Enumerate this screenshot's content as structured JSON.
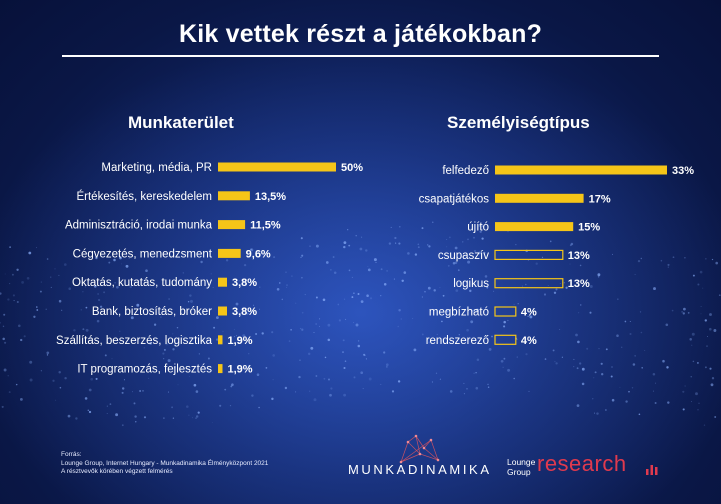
{
  "title": "Kik vettek részt a játékokban?",
  "chart_data": [
    {
      "type": "bar",
      "orientation": "horizontal",
      "title": "Munkaterület",
      "categories": [
        "Marketing, média, PR",
        "Értékesítés, kereskedelem",
        "Adminisztráció, irodai munka",
        "Cégvezetés, menedzsment",
        "Oktatás, kutatás, tudomány",
        "Bank, biztosítás, bróker",
        "Szállítás, beszerzés, logisztika",
        "IT programozás, fejlesztés"
      ],
      "values": [
        50,
        13.5,
        11.5,
        9.6,
        3.8,
        3.8,
        1.9,
        1.9
      ],
      "value_labels": [
        "50%",
        "13,5%",
        "11,5%",
        "9,6%",
        "3,8%",
        "3,8%",
        "1,9%",
        "1,9%"
      ],
      "bar_styles": [
        "filled",
        "filled",
        "filled",
        "filled",
        "filled",
        "filled",
        "filled",
        "filled"
      ],
      "xlim": [
        0,
        50
      ],
      "color": "#f5c518"
    },
    {
      "type": "bar",
      "orientation": "horizontal",
      "title": "Személyiségtípus",
      "categories": [
        "felfedező",
        "csapatjátékos",
        "újító",
        "csupaszív",
        "logikus",
        "megbízható",
        "rendszerező"
      ],
      "values": [
        33,
        17,
        15,
        13,
        13,
        4,
        4
      ],
      "value_labels": [
        "33%",
        "17%",
        "15%",
        "13%",
        "13%",
        "4%",
        "4%"
      ],
      "bar_styles": [
        "filled",
        "filled",
        "filled",
        "outline",
        "outline",
        "outline",
        "outline"
      ],
      "xlim": [
        0,
        33
      ],
      "color": "#f5c518"
    }
  ],
  "source": {
    "line1": "Forrás:",
    "line2": "Lounge Group, Internet Hungary - Munkadinamika Élményközpont 2021",
    "line3": "A résztvevők körében végzett felmérés"
  },
  "logos": {
    "munkadinamika": "MUNKADINAMIKA",
    "lounge_group": "Lounge Group",
    "research": "research"
  }
}
